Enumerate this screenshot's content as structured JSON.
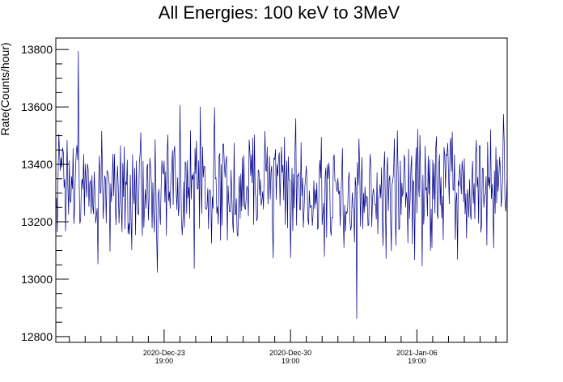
{
  "chart_data": {
    "type": "line",
    "title": "All Energies:  100 keV to 3MeV",
    "ylabel": "Rate(Counts/hour)",
    "xlabel": "",
    "x_range": [
      "2020-Dec-17 19:00",
      "2021-Jan-11 19:00"
    ],
    "ylim": [
      12780,
      13840
    ],
    "y_ticks": [
      12800,
      13000,
      13200,
      13400,
      13600,
      13800
    ],
    "x_ticks": [
      {
        "date": "2020-Dec-23",
        "time": "19:00",
        "at": "2020-12-23T19:00"
      },
      {
        "date": "2020-Dec-30",
        "time": "19:00",
        "at": "2020-12-30T19:00"
      },
      {
        "date": "2021-Jan-06",
        "time": "19:00",
        "at": "2021-01-06T19:00"
      }
    ],
    "series": [
      {
        "color": "#00008b",
        "samples": "hourly",
        "mean": 13310,
        "std": 110,
        "min": 12862,
        "max": 13795
      }
    ],
    "grid": false,
    "legend": "none"
  }
}
